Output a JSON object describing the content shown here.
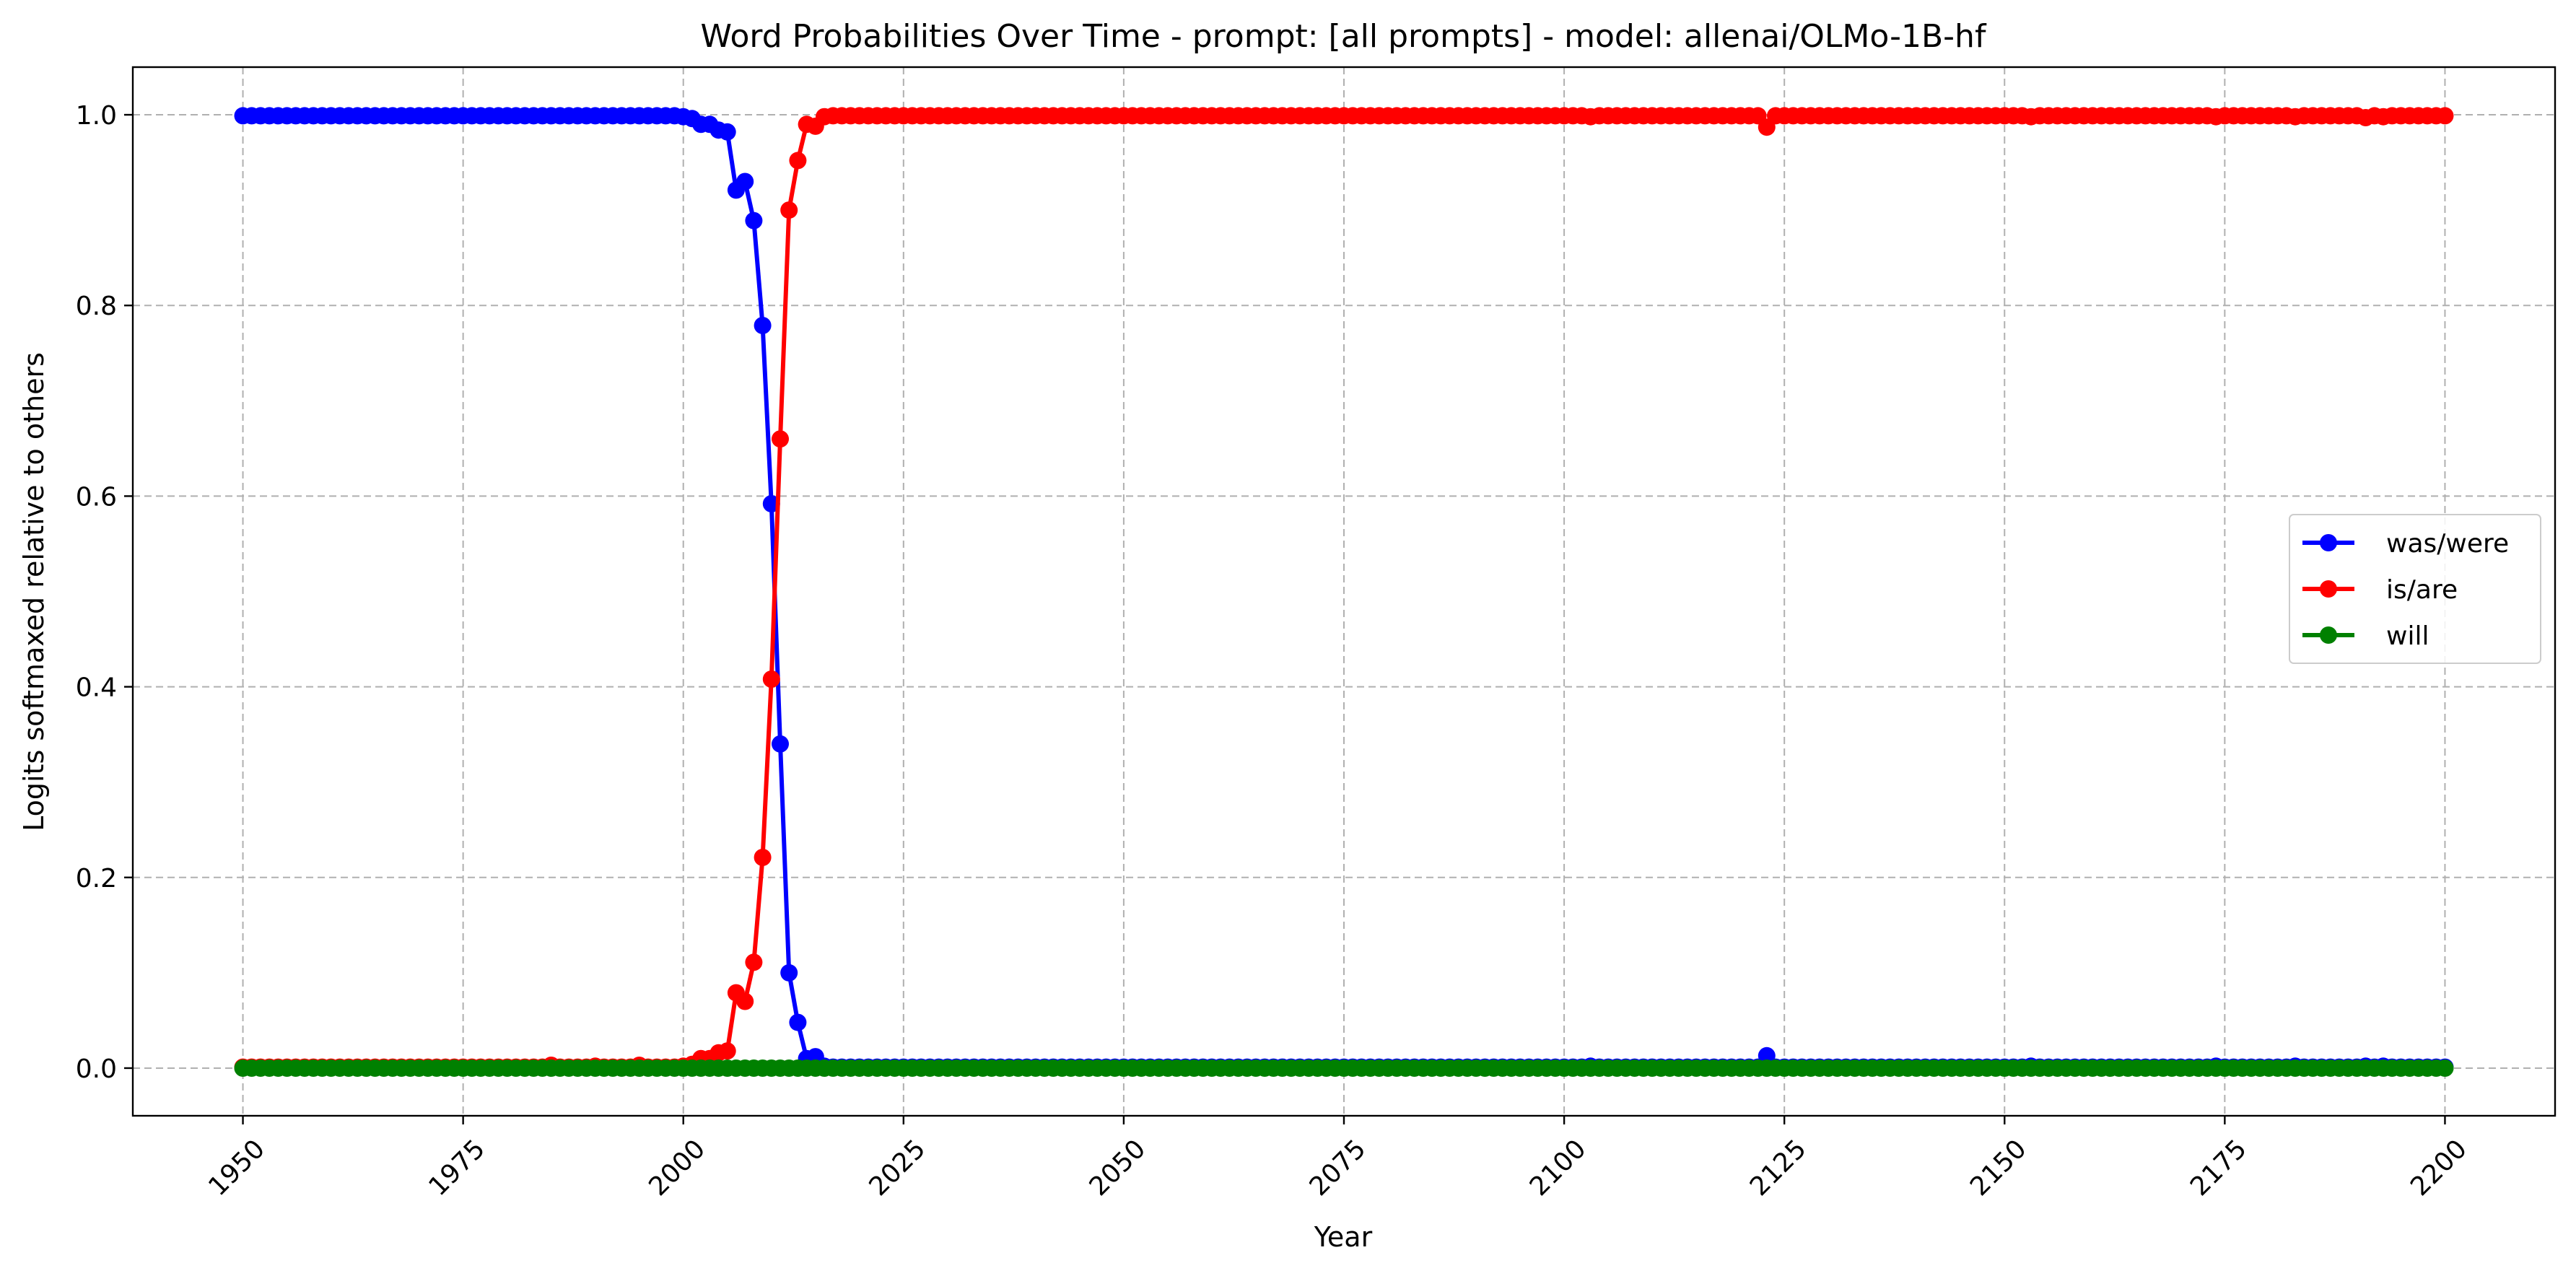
{
  "chart_data": {
    "type": "line",
    "title": "Word Probabilities Over Time - prompt: [all prompts] - model: allenai/OLMo-1B-hf",
    "xlabel": "Year",
    "ylabel": "Logits softmaxed relative to others",
    "xlim": [
      1937.5,
      2212.5
    ],
    "ylim": [
      -0.05,
      1.05
    ],
    "x_ticks": [
      1950,
      1975,
      2000,
      2025,
      2050,
      2075,
      2100,
      2125,
      2150,
      2175,
      2200
    ],
    "y_ticks": [
      0.0,
      0.2,
      0.4,
      0.6,
      0.8,
      1.0
    ],
    "x_tick_rotation": 45,
    "grid": true,
    "legend": "center-right",
    "x_range": {
      "start": 1950,
      "end": 2200,
      "step": 1
    },
    "series": [
      {
        "name": "was/were",
        "color": "#0000ff",
        "marker": "circle",
        "baseline": 0.999,
        "overrides": {
          "2000": 0.998,
          "2001": 0.996,
          "2002": 0.99,
          "2003": 0.99,
          "2004": 0.984,
          "2005": 0.982,
          "2006": 0.921,
          "2007": 0.93,
          "2008": 0.889,
          "2009": 0.779,
          "2010": 0.592,
          "2011": 0.34,
          "2012": 0.1,
          "2013": 0.048,
          "2014": 0.01,
          "2015": 0.012,
          "2016": 0.002,
          "2103": 0.002,
          "2123": 0.013,
          "2153": 0.002,
          "2174": 0.002,
          "2183": 0.002,
          "2191": 0.002,
          "2193": 0.002
        },
        "after": 0.001
      },
      {
        "name": "is/are",
        "color": "#ff0000",
        "marker": "circle",
        "baseline": 0.001,
        "overrides": {
          "1985": 0.003,
          "1990": 0.002,
          "1995": 0.003,
          "2000": 0.002,
          "2001": 0.004,
          "2002": 0.01,
          "2003": 0.01,
          "2004": 0.016,
          "2005": 0.018,
          "2006": 0.079,
          "2007": 0.07,
          "2008": 0.111,
          "2009": 0.221,
          "2010": 0.408,
          "2011": 0.66,
          "2012": 0.9,
          "2013": 0.952,
          "2014": 0.99,
          "2015": 0.988,
          "2016": 0.998,
          "2103": 0.998,
          "2123": 0.987,
          "2153": 0.998,
          "2174": 0.998,
          "2183": 0.998,
          "2191": 0.997,
          "2193": 0.998
        },
        "after": 0.999
      },
      {
        "name": "will",
        "color": "#008000",
        "marker": "circle",
        "baseline": 0.0,
        "overrides": {},
        "after": 0.0
      }
    ]
  }
}
